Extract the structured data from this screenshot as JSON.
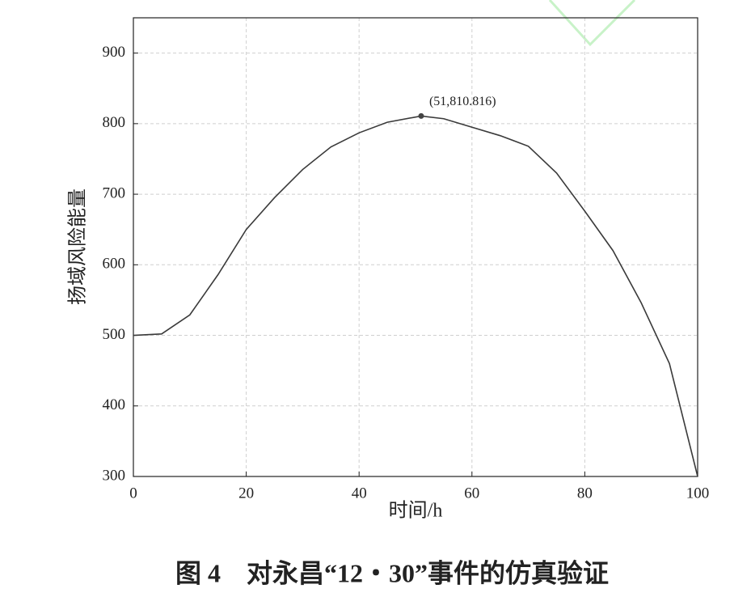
{
  "chart_data": {
    "type": "line",
    "xlabel": "时间/h",
    "ylabel": "扬域风险能量",
    "caption": "图 4　对永昌“12・30”事件的仿真验证",
    "x": [
      0,
      5,
      10,
      15,
      20,
      25,
      30,
      35,
      40,
      45,
      51,
      55,
      60,
      65,
      70,
      75,
      80,
      85,
      90,
      95,
      100
    ],
    "series": [
      {
        "name": "扬域风险能量",
        "color": "#3a3a3a",
        "values": [
          500,
          502,
          529,
          586,
          650,
          695,
          735,
          767,
          787,
          802,
          810.816,
          807,
          795,
          783,
          768,
          730,
          676,
          620,
          546,
          460,
          300
        ]
      }
    ],
    "annotation": {
      "text": "(51,810.816)",
      "x": 51,
      "y": 810.816
    },
    "xlim": [
      0,
      100
    ],
    "xticks": [
      0,
      20,
      40,
      60,
      80,
      100
    ],
    "ylim": [
      300,
      950
    ],
    "yticks": [
      300,
      400,
      500,
      600,
      700,
      800,
      900
    ],
    "grid": true
  }
}
